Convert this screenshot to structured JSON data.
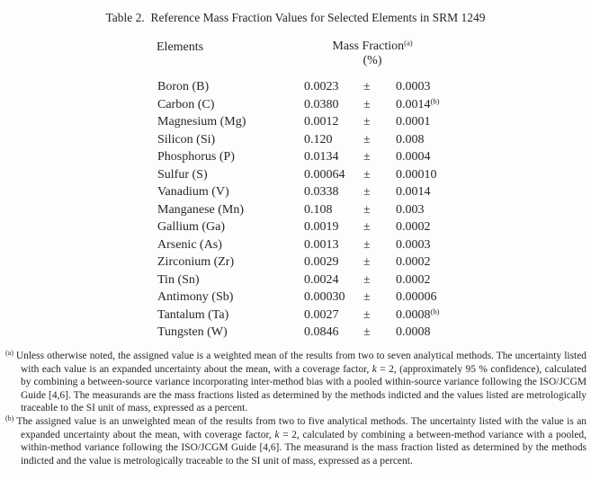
{
  "title": "Table 2.  Reference Mass Fraction Values for Selected Elements in SRM 1249",
  "table": {
    "col_elements": "Elements",
    "col_mass_fraction": "Mass Fraction",
    "col_mass_fraction_sup": "(a)",
    "col_unit": "(%)",
    "plus_minus": "±",
    "rows": [
      {
        "element": "Boron (B)",
        "value": "0.0023",
        "uncertainty": "0.0003",
        "sup": ""
      },
      {
        "element": "Carbon (C)",
        "value": "0.0380",
        "uncertainty": "0.0014",
        "sup": "(b)"
      },
      {
        "element": "Magnesium (Mg)",
        "value": "0.0012",
        "uncertainty": "0.0001",
        "sup": ""
      },
      {
        "element": "Silicon (Si)",
        "value": "0.120",
        "uncertainty": "0.008",
        "sup": ""
      },
      {
        "element": "Phosphorus (P)",
        "value": "0.0134",
        "uncertainty": "0.0004",
        "sup": ""
      },
      {
        "element": "Sulfur (S)",
        "value": "0.00064",
        "uncertainty": "0.00010",
        "sup": ""
      },
      {
        "element": "Vanadium (V)",
        "value": "0.0338",
        "uncertainty": "0.0014",
        "sup": ""
      },
      {
        "element": "Manganese (Mn)",
        "value": "0.108",
        "uncertainty": "0.003",
        "sup": ""
      },
      {
        "element": "Gallium (Ga)",
        "value": "0.0019",
        "uncertainty": "0.0002",
        "sup": ""
      },
      {
        "element": "Arsenic (As)",
        "value": "0.0013",
        "uncertainty": "0.0003",
        "sup": ""
      },
      {
        "element": "Zirconium (Zr)",
        "value": "0.0029",
        "uncertainty": "0.0002",
        "sup": ""
      },
      {
        "element": "Tin (Sn)",
        "value": "0.0024",
        "uncertainty": "0.0002",
        "sup": ""
      },
      {
        "element": "Antimony (Sb)",
        "value": "0.00030",
        "uncertainty": "0.00006",
        "sup": ""
      },
      {
        "element": "Tantalum (Ta)",
        "value": "0.0027",
        "uncertainty": "0.0008",
        "sup": "(b)"
      },
      {
        "element": "Tungsten (W)",
        "value": "0.0846",
        "uncertainty": "0.0008",
        "sup": ""
      }
    ]
  },
  "footnotes": [
    {
      "marker": "(a)",
      "part1": "Unless otherwise noted, the assigned value is a weighted mean of the results from two to seven analytical methods.  The uncertainty listed with each value is an expanded uncertainty about the mean, with a coverage factor, ",
      "k": "k",
      "part2": " = 2, (approximately 95 % confidence), calculated by combining a between-source variance incorporating inter-method bias with a pooled within-source variance following the ISO/JCGM Guide [4,6].  The measurands are the mass fractions listed as determined by the methods indicted and the values listed are metrologically traceable to the SI unit of mass, expressed as a percent."
    },
    {
      "marker": "(b)",
      "part1": "The assigned value is an unweighted mean of the results from two to five analytical methods.  The uncertainty listed with the value is an expanded uncertainty about the mean, with coverage factor, ",
      "k": "k",
      "part2": " = 2, calculated by combining a between-method variance with a pooled, within-method variance following the ISO/JCGM Guide [4,6].  The measurand is the mass fraction listed as determined by the methods indicted and the value is metrologically traceable to the SI unit of mass, expressed as a percent."
    }
  ]
}
